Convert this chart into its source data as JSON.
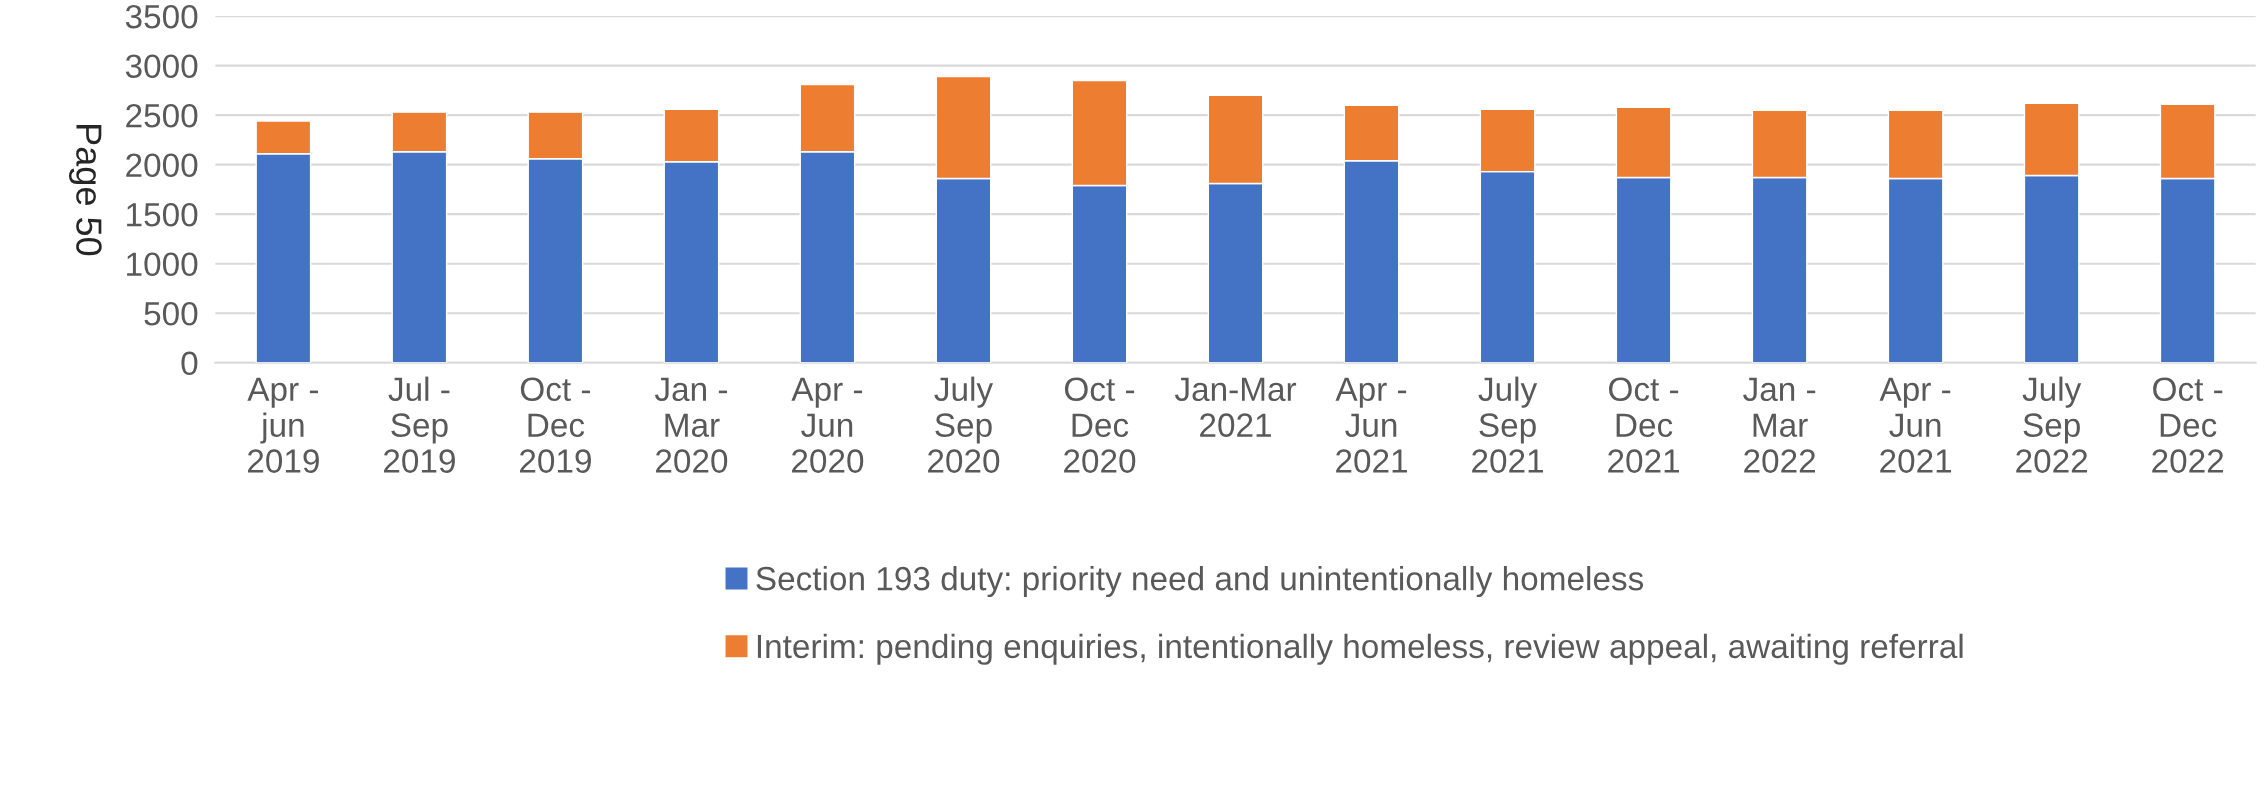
{
  "chart_data": {
    "type": "bar",
    "stacked": true,
    "ylabel": "Page 50",
    "categories": [
      "Apr -\njun\n2019",
      "Jul -\nSep\n2019",
      "Oct -\nDec\n2019",
      "Jan -\nMar\n2020",
      "Apr -\nJun\n2020",
      "July\nSep\n2020",
      "Oct -\nDec\n2020",
      "Jan-Mar\n2021",
      "Apr -\nJun\n2021",
      "July\nSep\n2021",
      "Oct -\nDec\n2021",
      "Jan -\nMar\n2022",
      "Apr -\nJun\n2021",
      "July\nSep\n2022",
      "Oct -\nDec\n2022"
    ],
    "series": [
      {
        "name": "Section 193 duty: priority need and unintentionally homeless",
        "color": "#4472c4",
        "values": [
          2110,
          2130,
          2060,
          2030,
          2130,
          1860,
          1790,
          1810,
          2040,
          1930,
          1870,
          1870,
          1860,
          1890,
          1860
        ]
      },
      {
        "name": "Interim: pending enquiries, intentionally homeless, review appeal, awaiting referral",
        "color": "#ed7d31",
        "values": [
          330,
          400,
          470,
          530,
          680,
          1030,
          1060,
          890,
          560,
          630,
          710,
          680,
          690,
          730,
          750
        ]
      }
    ],
    "ylim": [
      0,
      3500
    ],
    "yticks": [
      0,
      500,
      1000,
      1500,
      2000,
      2500,
      3000,
      3500
    ],
    "grid": "y",
    "legend": "bottom"
  }
}
